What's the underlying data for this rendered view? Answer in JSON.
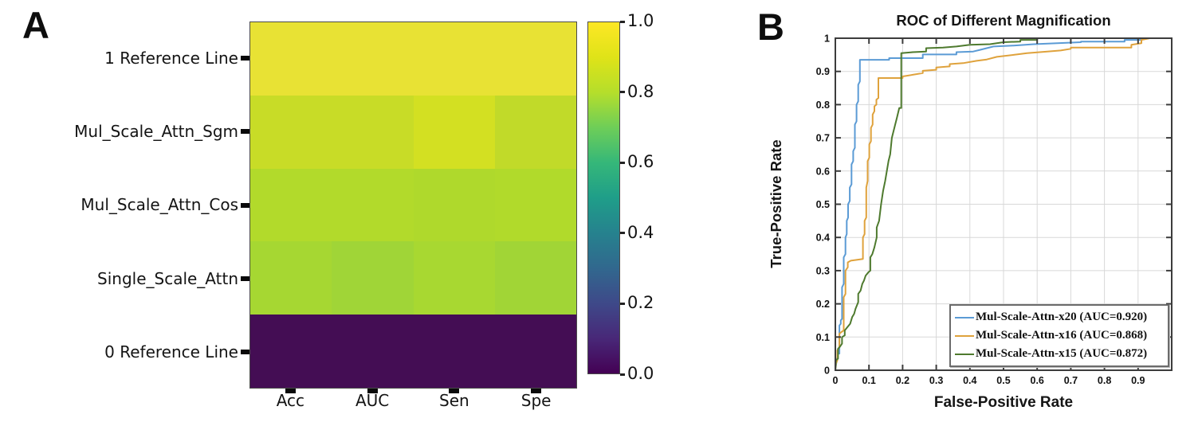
{
  "figure": {
    "background": "#ffffff"
  },
  "panel_a": {
    "label": "A",
    "row_labels": [
      "1 Reference Line",
      "Mul_Scale_Attn_Sgm",
      "Mul_Scale_Attn_Cos",
      "Single_Scale_Attn",
      "0 Reference Line"
    ],
    "col_labels": [
      "Acc",
      "AUC",
      "Sen",
      "Spe"
    ],
    "colorbar_tick_labels": [
      "1.0",
      "0.8",
      "0.6",
      "0.4",
      "0.2",
      "0.0"
    ],
    "cell_colors": [
      [
        "#e8e234",
        "#e8e234",
        "#e8e234",
        "#e8e234"
      ],
      [
        "#c8dc27",
        "#c8dc27",
        "#d3e022",
        "#c1da29"
      ],
      [
        "#b2da2b",
        "#b2da2b",
        "#afd92c",
        "#b1da2b"
      ],
      [
        "#a6d732",
        "#a0d537",
        "#a8d831",
        "#a1d536"
      ],
      [
        "#440d54",
        "#440d54",
        "#440d54",
        "#440d54"
      ]
    ]
  },
  "panel_b": {
    "label": "B",
    "title": "ROC of Different Magnification",
    "xlabel": "False-Positive Rate",
    "ylabel": "True-Positive Rate",
    "x_tick_labels": [
      "0",
      "0.1",
      "0.2",
      "0.3",
      "0.4",
      "0.5",
      "0.6",
      "0.7",
      "0.8",
      "0.9"
    ],
    "y_tick_labels": [
      "0",
      "0.1",
      "0.2",
      "0.3",
      "0.4",
      "0.5",
      "0.6",
      "0.7",
      "0.8",
      "0.9",
      "1"
    ],
    "grid_color": "#d8d8d8",
    "frame_color": "#3c3c3c",
    "legend": [
      {
        "label": "Mul-Scale-Attn-x20 (AUC=0.920)",
        "color": "#5b9bd5"
      },
      {
        "label": "Mul-Scale-Attn-x16 (AUC=0.868)",
        "color": "#dfa23c"
      },
      {
        "label": "Mul-Scale-Attn-x15 (AUC=0.872)",
        "color": "#4e7a2e"
      }
    ]
  },
  "chart_data": [
    {
      "type": "heatmap",
      "rows": [
        "1 Reference Line",
        "Mul_Scale_Attn_Sgm",
        "Mul_Scale_Attn_Cos",
        "Single_Scale_Attn",
        "0 Reference Line"
      ],
      "columns": [
        "Acc",
        "AUC",
        "Sen",
        "Spe"
      ],
      "values": [
        [
          1.0,
          1.0,
          1.0,
          1.0
        ],
        [
          0.92,
          0.92,
          0.93,
          0.9
        ],
        [
          0.89,
          0.89,
          0.88,
          0.88
        ],
        [
          0.86,
          0.87,
          0.86,
          0.85
        ],
        [
          0.0,
          0.0,
          0.0,
          0.0
        ]
      ],
      "colorbar": {
        "range": [
          0.0,
          1.0
        ],
        "ticks": [
          0.0,
          0.2,
          0.4,
          0.6,
          0.8,
          1.0
        ],
        "colormap": "viridis",
        "stops": [
          "#440154",
          "#482878",
          "#3e4989",
          "#31688e",
          "#26828e",
          "#1f9e89",
          "#35b779",
          "#6ece58",
          "#b5de2b",
          "#dfe318",
          "#fde725"
        ]
      }
    },
    {
      "type": "line",
      "title": "ROC of Different Magnification",
      "xlabel": "False-Positive Rate",
      "ylabel": "True-Positive Rate",
      "xlim": [
        0,
        1
      ],
      "ylim": [
        0,
        1
      ],
      "grid": true,
      "legend_position": "lower right",
      "series": [
        {
          "name": "Mul-Scale-Attn-x20 (AUC=0.920)",
          "auc": 0.92,
          "color": "#5b9bd5",
          "points": [
            [
              0,
              0
            ],
            [
              0.004,
              0.03
            ],
            [
              0.008,
              0.05
            ],
            [
              0.012,
              0.05
            ],
            [
              0.012,
              0.135
            ],
            [
              0.016,
              0.14
            ],
            [
              0.016,
              0.15
            ],
            [
              0.02,
              0.155
            ],
            [
              0.02,
              0.25
            ],
            [
              0.025,
              0.26
            ],
            [
              0.025,
              0.34
            ],
            [
              0.03,
              0.35
            ],
            [
              0.03,
              0.4
            ],
            [
              0.034,
              0.41
            ],
            [
              0.034,
              0.45
            ],
            [
              0.038,
              0.46
            ],
            [
              0.038,
              0.5
            ],
            [
              0.043,
              0.51
            ],
            [
              0.043,
              0.55
            ],
            [
              0.048,
              0.56
            ],
            [
              0.048,
              0.62
            ],
            [
              0.053,
              0.63
            ],
            [
              0.053,
              0.66
            ],
            [
              0.058,
              0.67
            ],
            [
              0.058,
              0.74
            ],
            [
              0.063,
              0.75
            ],
            [
              0.063,
              0.8
            ],
            [
              0.068,
              0.81
            ],
            [
              0.068,
              0.86
            ],
            [
              0.073,
              0.87
            ],
            [
              0.073,
              0.935
            ],
            [
              0.16,
              0.935
            ],
            [
              0.16,
              0.94
            ],
            [
              0.26,
              0.94
            ],
            [
              0.26,
              0.951
            ],
            [
              0.36,
              0.951
            ],
            [
              0.36,
              0.958
            ],
            [
              0.41,
              0.96
            ],
            [
              0.43,
              0.965
            ],
            [
              0.47,
              0.975
            ],
            [
              0.53,
              0.978
            ],
            [
              0.59,
              0.982
            ],
            [
              0.66,
              0.985
            ],
            [
              0.73,
              0.988
            ],
            [
              0.73,
              0.99
            ],
            [
              0.86,
              0.99
            ],
            [
              0.86,
              0.995
            ],
            [
              0.91,
              0.995
            ],
            [
              0.91,
              1
            ],
            [
              1,
              1
            ]
          ]
        },
        {
          "name": "Mul-Scale-Attn-x16 (AUC=0.868)",
          "auc": 0.868,
          "color": "#dfa23c",
          "points": [
            [
              0,
              0
            ],
            [
              0.002,
              0.02
            ],
            [
              0.006,
              0.03
            ],
            [
              0.006,
              0.06
            ],
            [
              0.012,
              0.07
            ],
            [
              0.012,
              0.11
            ],
            [
              0.018,
              0.115
            ],
            [
              0.025,
              0.12
            ],
            [
              0.025,
              0.22
            ],
            [
              0.03,
              0.23
            ],
            [
              0.03,
              0.3
            ],
            [
              0.037,
              0.31
            ],
            [
              0.037,
              0.325
            ],
            [
              0.046,
              0.33
            ],
            [
              0.082,
              0.335
            ],
            [
              0.082,
              0.4
            ],
            [
              0.087,
              0.41
            ],
            [
              0.087,
              0.45
            ],
            [
              0.092,
              0.46
            ],
            [
              0.092,
              0.55
            ],
            [
              0.096,
              0.57
            ],
            [
              0.096,
              0.63
            ],
            [
              0.101,
              0.64
            ],
            [
              0.101,
              0.68
            ],
            [
              0.106,
              0.69
            ],
            [
              0.106,
              0.73
            ],
            [
              0.111,
              0.74
            ],
            [
              0.111,
              0.77
            ],
            [
              0.116,
              0.78
            ],
            [
              0.116,
              0.795
            ],
            [
              0.122,
              0.8
            ],
            [
              0.122,
              0.815
            ],
            [
              0.128,
              0.82
            ],
            [
              0.128,
              0.88
            ],
            [
              0.2,
              0.88
            ],
            [
              0.2,
              0.885
            ],
            [
              0.23,
              0.89
            ],
            [
              0.26,
              0.895
            ],
            [
              0.26,
              0.902
            ],
            [
              0.3,
              0.905
            ],
            [
              0.3,
              0.912
            ],
            [
              0.34,
              0.915
            ],
            [
              0.34,
              0.922
            ],
            [
              0.38,
              0.925
            ],
            [
              0.42,
              0.932
            ],
            [
              0.45,
              0.936
            ],
            [
              0.48,
              0.944
            ],
            [
              0.53,
              0.95
            ],
            [
              0.57,
              0.955
            ],
            [
              0.63,
              0.96
            ],
            [
              0.67,
              0.963
            ],
            [
              0.7,
              0.968
            ],
            [
              0.7,
              0.972
            ],
            [
              0.88,
              0.972
            ],
            [
              0.88,
              0.98
            ],
            [
              0.91,
              0.985
            ],
            [
              0.91,
              0.995
            ],
            [
              0.935,
              1
            ],
            [
              1,
              1
            ]
          ]
        },
        {
          "name": "Mul-Scale-Attn-x15 (AUC=0.872)",
          "auc": 0.872,
          "color": "#4e7a2e",
          "points": [
            [
              0,
              0
            ],
            [
              0.002,
              0.03
            ],
            [
              0.008,
              0.035
            ],
            [
              0.008,
              0.065
            ],
            [
              0.013,
              0.07
            ],
            [
              0.02,
              0.08
            ],
            [
              0.02,
              0.1
            ],
            [
              0.028,
              0.105
            ],
            [
              0.028,
              0.12
            ],
            [
              0.036,
              0.13
            ],
            [
              0.044,
              0.14
            ],
            [
              0.05,
              0.16
            ],
            [
              0.056,
              0.17
            ],
            [
              0.06,
              0.185
            ],
            [
              0.068,
              0.205
            ],
            [
              0.068,
              0.23
            ],
            [
              0.075,
              0.24
            ],
            [
              0.08,
              0.26
            ],
            [
              0.085,
              0.27
            ],
            [
              0.09,
              0.285
            ],
            [
              0.098,
              0.295
            ],
            [
              0.104,
              0.3
            ],
            [
              0.104,
              0.34
            ],
            [
              0.11,
              0.35
            ],
            [
              0.116,
              0.37
            ],
            [
              0.123,
              0.4
            ],
            [
              0.123,
              0.43
            ],
            [
              0.13,
              0.45
            ],
            [
              0.136,
              0.5
            ],
            [
              0.142,
              0.54
            ],
            [
              0.148,
              0.57
            ],
            [
              0.153,
              0.6
            ],
            [
              0.158,
              0.63
            ],
            [
              0.163,
              0.65
            ],
            [
              0.168,
              0.7
            ],
            [
              0.173,
              0.72
            ],
            [
              0.178,
              0.74
            ],
            [
              0.183,
              0.76
            ],
            [
              0.19,
              0.79
            ],
            [
              0.196,
              0.79
            ],
            [
              0.196,
              0.955
            ],
            [
              0.23,
              0.958
            ],
            [
              0.27,
              0.96
            ],
            [
              0.27,
              0.97
            ],
            [
              0.32,
              0.972
            ],
            [
              0.36,
              0.975
            ],
            [
              0.4,
              0.98
            ],
            [
              0.46,
              0.982
            ],
            [
              0.5,
              0.988
            ],
            [
              0.55,
              0.99
            ],
            [
              0.55,
              0.995
            ],
            [
              0.6,
              0.995
            ],
            [
              0.6,
              1
            ],
            [
              1,
              1
            ]
          ]
        }
      ]
    }
  ]
}
